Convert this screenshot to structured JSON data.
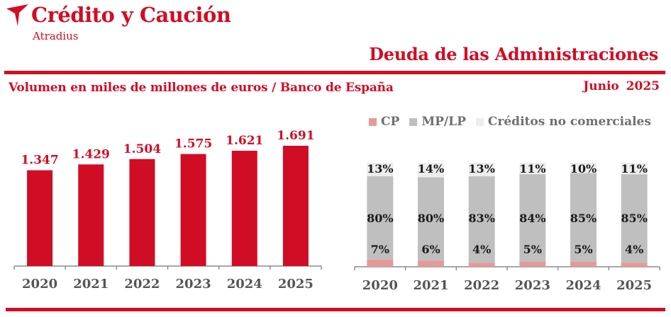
{
  "header": {
    "brand": "Crédito y Caución",
    "brand_sub": "Atradius",
    "title": "Deuda de las Administraciones",
    "subtitle": "Volumen en miles de millones de euros  / Banco de España",
    "date": "Junio  2025"
  },
  "colors": {
    "accent": "#d10d25",
    "cp": "#e59a9a",
    "mplp": "#bfbfbf",
    "other": "#ededed",
    "axis_text": "#555555"
  },
  "legend": {
    "cp": "CP",
    "mplp": "MP/LP",
    "other": "Créditos no comerciales"
  },
  "chart_data": [
    {
      "type": "bar",
      "categories": [
        "2020",
        "2021",
        "2022",
        "2023",
        "2024",
        "2025"
      ],
      "values": [
        1347,
        1429,
        1504,
        1575,
        1621,
        1691
      ],
      "value_labels": [
        "1.347",
        "1.429",
        "1.504",
        "1.575",
        "1.621",
        "1.691"
      ],
      "ylim": [
        0,
        1800
      ],
      "grid": false
    },
    {
      "type": "bar",
      "stacked": true,
      "percent": true,
      "categories": [
        "2020",
        "2021",
        "2022",
        "2023",
        "2024",
        "2025"
      ],
      "series": [
        {
          "name": "CP",
          "values": [
            7,
            6,
            4,
            5,
            5,
            4
          ]
        },
        {
          "name": "MP/LP",
          "values": [
            80,
            80,
            83,
            84,
            85,
            85
          ]
        },
        {
          "name": "Créditos no comerciales",
          "values": [
            13,
            14,
            13,
            11,
            10,
            11
          ]
        }
      ],
      "legend_position": "top",
      "grid": false
    }
  ]
}
